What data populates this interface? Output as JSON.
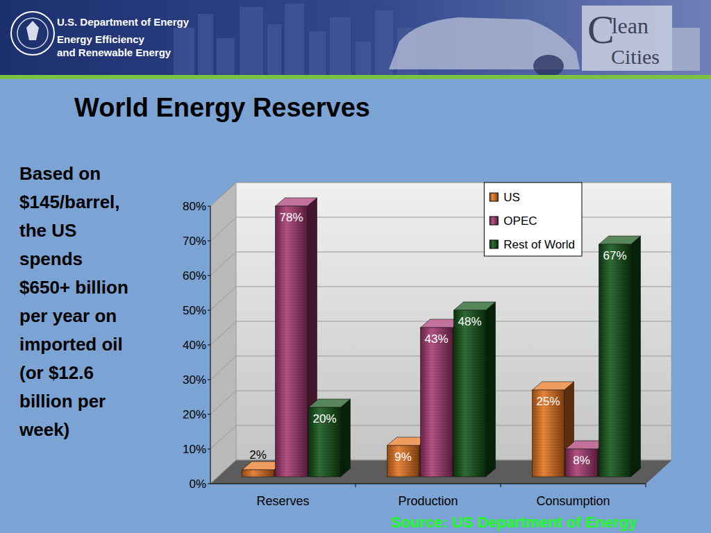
{
  "header": {
    "agency": "U.S. Department of Energy",
    "office_lines": [
      "Energy Efficiency",
      "and Renewable Energy"
    ],
    "logo_lines": [
      "Clean",
      "Cities"
    ]
  },
  "sidebar": {
    "lines": [
      "Based on",
      "$145/barrel,",
      "the US",
      "spends",
      "$650+ billion",
      "per year on",
      "imported oil",
      "(or $12.6",
      "billion per",
      "week)"
    ]
  },
  "source": "Source: US Department of Energy",
  "chart_data": {
    "type": "bar",
    "title": "World Energy Reserves",
    "categories": [
      "Reserves",
      "Production",
      "Consumption"
    ],
    "series": [
      {
        "name": "US",
        "color": "#e8721c",
        "values": [
          2,
          9,
          25
        ],
        "value_labels": [
          "2%",
          "9%",
          "25%"
        ]
      },
      {
        "name": "OPEC",
        "color": "#a8366f",
        "values": [
          78,
          43,
          8
        ],
        "value_labels": [
          "78%",
          "43%",
          "8%"
        ]
      },
      {
        "name": "Rest of World",
        "color": "#0f5214",
        "values": [
          20,
          48,
          67
        ],
        "value_labels": [
          "20%",
          "48%",
          "67%"
        ]
      }
    ],
    "ylim": [
      0,
      80
    ],
    "yticks": [
      {
        "value": 0,
        "label": "0%"
      },
      {
        "value": 10,
        "label": "10%"
      },
      {
        "value": 20,
        "label": "20%"
      },
      {
        "value": 30,
        "label": "30%"
      },
      {
        "value": 40,
        "label": "40%"
      },
      {
        "value": 50,
        "label": "50%"
      },
      {
        "value": 60,
        "label": "60%"
      },
      {
        "value": 70,
        "label": "70%"
      },
      {
        "value": 80,
        "label": "80%"
      }
    ],
    "grid": true,
    "legend": "top-right",
    "data_labels": true
  }
}
